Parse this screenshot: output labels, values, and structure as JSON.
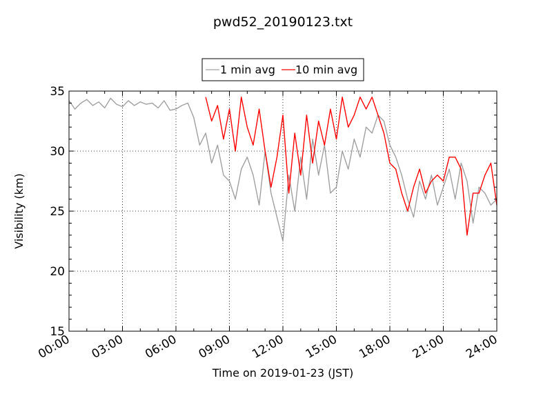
{
  "chart_data": {
    "type": "line",
    "title": "pwd52_20190123.txt",
    "xlabel": "Time on 2019-01-23 (JST)",
    "ylabel": "Visibility (km)",
    "xlim": [
      "00:00",
      "24:00"
    ],
    "ylim": [
      15,
      35
    ],
    "x_ticks": [
      "00:00",
      "03:00",
      "06:00",
      "09:00",
      "12:00",
      "15:00",
      "18:00",
      "21:00",
      "24:00"
    ],
    "y_ticks": [
      15,
      20,
      25,
      30,
      35
    ],
    "grid": true,
    "legend_position": "top-center, above plot",
    "series": [
      {
        "name": "1 min avg",
        "color": "#a0a0a0",
        "x": [
          "00:00",
          "00:20",
          "00:40",
          "01:00",
          "01:20",
          "01:40",
          "02:00",
          "02:20",
          "02:40",
          "03:00",
          "03:20",
          "03:40",
          "04:00",
          "04:20",
          "04:40",
          "05:00",
          "05:20",
          "05:40",
          "06:00",
          "06:20",
          "06:40",
          "07:00",
          "07:20",
          "07:40",
          "08:00",
          "08:20",
          "08:40",
          "09:00",
          "09:20",
          "09:40",
          "10:00",
          "10:20",
          "10:40",
          "11:00",
          "11:20",
          "11:40",
          "12:00",
          "12:20",
          "12:40",
          "13:00",
          "13:20",
          "13:40",
          "14:00",
          "14:20",
          "14:40",
          "15:00",
          "15:20",
          "15:40",
          "16:00",
          "16:20",
          "16:40",
          "17:00",
          "17:20",
          "17:40",
          "18:00",
          "18:20",
          "18:40",
          "19:00",
          "19:20",
          "19:40",
          "20:00",
          "20:20",
          "20:40",
          "21:00",
          "21:20",
          "21:40",
          "22:00",
          "22:20",
          "22:40",
          "23:00",
          "23:20",
          "23:40",
          "24:00"
        ],
        "y": [
          34.2,
          33.5,
          34.0,
          34.3,
          33.8,
          34.1,
          33.6,
          34.4,
          33.9,
          33.7,
          34.2,
          33.8,
          34.1,
          33.9,
          34.0,
          33.6,
          34.2,
          33.4,
          33.5,
          33.8,
          34.0,
          32.8,
          30.5,
          31.5,
          29.0,
          30.5,
          28.0,
          27.5,
          26.0,
          28.5,
          29.5,
          28.0,
          25.5,
          30.0,
          26.5,
          24.5,
          22.5,
          28.0,
          25.0,
          29.5,
          26.0,
          31.0,
          28.0,
          30.5,
          26.5,
          27.0,
          30.0,
          28.5,
          31.0,
          29.5,
          32.0,
          31.5,
          33.0,
          32.5,
          30.5,
          29.5,
          28.0,
          26.0,
          24.5,
          27.5,
          26.0,
          28.0,
          25.5,
          27.0,
          28.5,
          26.0,
          29.0,
          27.5,
          24.0,
          27.0,
          26.5,
          25.5,
          26.0
        ]
      },
      {
        "name": "10 min avg",
        "color": "#ff0000",
        "x": [
          "07:40",
          "08:00",
          "08:20",
          "08:40",
          "09:00",
          "09:20",
          "09:40",
          "10:00",
          "10:20",
          "10:40",
          "11:00",
          "11:20",
          "11:40",
          "12:00",
          "12:20",
          "12:40",
          "13:00",
          "13:20",
          "13:40",
          "14:00",
          "14:20",
          "14:40",
          "15:00",
          "15:20",
          "15:40",
          "16:00",
          "16:20",
          "16:40",
          "17:00",
          "17:20",
          "17:40",
          "18:00",
          "18:20",
          "18:40",
          "19:00",
          "19:20",
          "19:40",
          "20:00",
          "20:20",
          "20:40",
          "21:00",
          "21:20",
          "21:40",
          "22:00",
          "22:20",
          "22:40",
          "23:00",
          "23:20",
          "23:40",
          "24:00"
        ],
        "y": [
          34.5,
          32.5,
          33.8,
          31.0,
          33.5,
          30.0,
          34.5,
          32.0,
          30.5,
          33.5,
          30.0,
          27.0,
          29.5,
          33.0,
          26.5,
          31.5,
          28.0,
          33.0,
          29.0,
          32.5,
          30.5,
          33.5,
          31.0,
          34.5,
          32.0,
          33.0,
          34.5,
          33.5,
          34.5,
          33.0,
          31.5,
          29.0,
          28.5,
          26.5,
          25.0,
          27.0,
          28.5,
          26.5,
          27.5,
          28.0,
          27.5,
          29.5,
          29.5,
          28.5,
          23.0,
          26.5,
          26.5,
          28.0,
          29.0,
          25.5
        ]
      }
    ]
  }
}
